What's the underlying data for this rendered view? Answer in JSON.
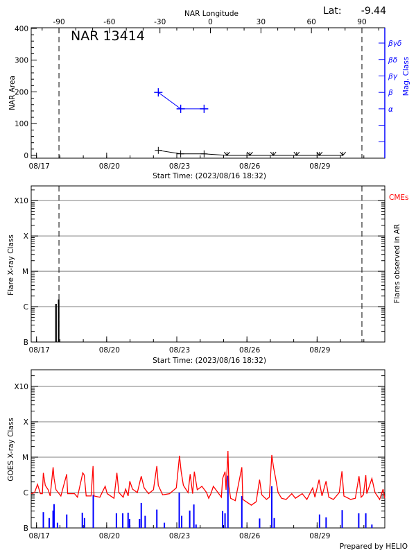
{
  "chart_data": [
    {
      "type": "line",
      "title": "NAR 13414",
      "lat_label": "Lat:",
      "lat_value": "-9.44",
      "xlabel": "Start Time: (2023/08/16 18:32)",
      "xlim": [
        "08/16 18:32",
        "08/31 21:30"
      ],
      "x_ticks": [
        "08/17",
        "08/20",
        "08/23",
        "08/26",
        "08/29"
      ],
      "top_axis": {
        "label": "NAR Longitude",
        "ticks": [
          "-90",
          "-60",
          "-30",
          "0",
          "30",
          "60",
          "90"
        ],
        "range": [
          -106.5,
          103.6
        ]
      },
      "limb_longitudes": [
        -90,
        90
      ],
      "ylabel": "NAR Area",
      "ylim": [
        -8.7,
        402
      ],
      "y_ticks": [
        "0",
        "100",
        "200",
        "300",
        "400"
      ],
      "y2label": "Mag. Class",
      "y2lim": [
        0,
        7.93
      ],
      "y2_ticks": [
        "",
        "",
        "α",
        "β",
        "βγ",
        "βδ",
        "βγδ"
      ],
      "colors": {
        "area": "#000000",
        "mag": "#0000ff"
      },
      "area_series": {
        "x": [
          "08/22 05:00",
          "08/23 04:00",
          "08/24 04:00",
          "08/25 03:30",
          "08/26 03:00",
          "08/27 03:00",
          "08/28 03:00",
          "08/29 02:30",
          "08/30 02:30"
        ],
        "y": [
          16,
          5,
          5,
          0,
          0,
          0,
          0,
          0,
          0
        ]
      },
      "mag_series": {
        "x": [
          "08/22 05:00",
          "08/23 04:00",
          "08/24 04:00"
        ],
        "class": [
          "β",
          "α",
          "α"
        ]
      }
    },
    {
      "type": "bar",
      "xlabel": "Start Time: (2023/08/16 18:32)",
      "xlim": [
        "08/16 18:32",
        "08/31 21:30"
      ],
      "x_ticks": [
        "08/17",
        "08/20",
        "08/23",
        "08/26",
        "08/29"
      ],
      "ylabel": "Flare X-ray Class",
      "y2label": "Flares observed in AR",
      "legend": {
        "label": "CMEs",
        "color": "#ff0000",
        "placement": "top-right"
      },
      "yscale": "log",
      "ylim": [
        1e-07,
        0.0026
      ],
      "y_ticks": [
        {
          "label": "B",
          "value": 1e-07
        },
        {
          "label": "C",
          "value": 1e-06
        },
        {
          "label": "M",
          "value": 1e-05
        },
        {
          "label": "X",
          "value": 0.0001
        },
        {
          "label": "X10",
          "value": 0.001
        }
      ],
      "grid": true,
      "limb_longitudes": [
        -90,
        90
      ],
      "flares": {
        "x": [
          "08/17 20:00",
          "08/17 22:45"
        ],
        "flux": [
          1.2e-06,
          1.6e-06
        ],
        "color": "#000000"
      }
    },
    {
      "type": "line",
      "xlim": [
        "08/16 18:32",
        "08/31 21:30"
      ],
      "x_ticks": [
        "08/17",
        "08/20",
        "08/23",
        "08/26",
        "08/29"
      ],
      "ylabel": "GOES X-ray Class",
      "yscale": "log",
      "ylim": [
        1e-07,
        0.00295
      ],
      "y_ticks": [
        {
          "label": "B",
          "value": 1e-07
        },
        {
          "label": "C",
          "value": 1e-06
        },
        {
          "label": "M",
          "value": 1e-05
        },
        {
          "label": "X",
          "value": 0.0001
        },
        {
          "label": "X10",
          "value": 0.001
        }
      ],
      "grid": true,
      "footer": "Prepared by HELIO",
      "series": [
        {
          "color": "#ff0000",
          "x": [
            "08/16 18:32",
            "08/16 22:00",
            "08/17 01:00",
            "08/17 04:00",
            "08/17 06:00",
            "08/17 07:00",
            "08/17 09:00",
            "08/17 12:00",
            "08/17 14:00",
            "08/17 17:00",
            "08/17 18:00",
            "08/17 20:00",
            "08/18 01:00",
            "08/18 07:00",
            "08/18 08:00",
            "08/18 15:00",
            "08/18 18:00",
            "08/18 23:30",
            "08/19 01:00",
            "08/19 03:00",
            "08/19 08:00",
            "08/19 10:00",
            "08/19 11:00",
            "08/19 17:00",
            "08/19 22:30",
            "08/20 00:30",
            "08/20 07:30",
            "08/20 10:30",
            "08/20 12:30",
            "08/20 17:00",
            "08/20 19:30",
            "08/20 22:00",
            "08/20 23:45",
            "08/21 02:30",
            "08/21 07:30",
            "08/21 11:30",
            "08/21 14:30",
            "08/21 19:00",
            "08/22 00:00",
            "08/22 03:30",
            "08/22 05:00",
            "08/22 09:30",
            "08/22 16:30",
            "08/22 23:30",
            "08/23 02:45",
            "08/23 04:30",
            "08/23 06:45",
            "08/23 11:30",
            "08/23 13:45",
            "08/23 16:15",
            "08/23 18:00",
            "08/23 21:00",
            "08/24 01:45",
            "08/24 06:30",
            "08/24 08:45",
            "08/24 11:00",
            "08/24 13:30",
            "08/24 18:15",
            "08/24 21:45",
            "08/24 23:00",
            "08/25 01:30",
            "08/25 02:30",
            "08/25 04:30",
            "08/25 05:30",
            "08/25 07:15",
            "08/25 12:00",
            "08/25 18:45",
            "08/25 19:45",
            "08/26 04:30",
            "08/26 09:30",
            "08/26 13:00",
            "08/26 15:15",
            "08/26 20:00",
            "08/26 23:00",
            "08/27 01:30",
            "08/27 03:15",
            "08/27 05:30",
            "08/27 08:00",
            "08/27 11:30",
            "08/27 16:15",
            "08/27 22:00",
            "08/28 01:45",
            "08/28 08:45",
            "08/28 13:30",
            "08/28 19:30",
            "08/28 21:45",
            "08/29 02:00",
            "08/29 05:00",
            "08/29 09:15",
            "08/29 12:00",
            "08/29 16:45",
            "08/29 22:45",
            "08/30 01:30",
            "08/30 03:30",
            "08/30 10:30",
            "08/30 15:15",
            "08/30 19:00",
            "08/30 21:15",
            "08/30 23:30",
            "08/31 02:00",
            "08/31 03:00",
            "08/31 08:15",
            "08/31 11:30",
            "08/31 16:15",
            "08/31 19:45",
            "08/31 21:30"
          ],
          "flux": [
            9.3e-07,
            1e-06,
            1.7e-06,
            9.3e-07,
            9.3e-07,
            3.6e-06,
            1.6e-06,
            1.2e-06,
            8e-07,
            5.2e-06,
            2.5e-06,
            1.2e-06,
            8e-07,
            3.3e-06,
            9.3e-07,
            9.3e-07,
            7.4e-07,
            3.6e-06,
            3.1e-06,
            8e-07,
            8e-07,
            5.6e-06,
            8e-07,
            7.4e-07,
            1.5e-06,
            9.3e-07,
            6.9e-07,
            3.6e-06,
            1e-06,
            7.4e-07,
            1.25e-06,
            8e-07,
            2.1e-06,
            1.25e-06,
            1e-06,
            2.9e-06,
            1.35e-06,
            9.3e-07,
            1.2e-06,
            5.6e-06,
            1.6e-06,
            8.6e-07,
            9.3e-07,
            1.35e-06,
            1.1e-05,
            3.9e-06,
            1.6e-06,
            1e-06,
            3.3e-06,
            9.3e-07,
            3.9e-06,
            1.2e-06,
            1.5e-06,
            1e-06,
            6.9e-07,
            9.3e-07,
            1.5e-06,
            1e-06,
            7.4e-07,
            2.5e-06,
            3.9e-06,
            1.2e-06,
            1.5e-05,
            1.5e-06,
            6.9e-07,
            5.9e-07,
            5.2e-06,
            6.4e-07,
            4.4e-07,
            5.5e-07,
            2.3e-06,
            8.6e-07,
            6.4e-07,
            7.4e-07,
            1.15e-05,
            5.2e-06,
            2.5e-06,
            1e-06,
            6.9e-07,
            6.4e-07,
            9.3e-07,
            6.9e-07,
            9.3e-07,
            6.4e-07,
            1.35e-06,
            7.4e-07,
            2.3e-06,
            8e-07,
            2.1e-06,
            7.4e-07,
            6.4e-07,
            1e-06,
            4e-06,
            8e-07,
            6.4e-07,
            6.9e-07,
            2.9e-06,
            7.4e-07,
            8.6e-07,
            3.1e-06,
            9.3e-07,
            2.5e-06,
            1e-06,
            6.4e-07,
            1.25e-06,
            6.9e-07
          ]
        },
        {
          "color": "#0000ff",
          "style": "bars",
          "x": [
            "08/17 07:00",
            "08/17 13:00",
            "08/17 17:00",
            "08/17 18:00",
            "08/17 21:30",
            "08/18 07:00",
            "08/18 23:00",
            "08/19 01:15",
            "08/19 10:15",
            "08/20 10:00",
            "08/20 16:30",
            "08/20 22:00",
            "08/20 23:30",
            "08/21 09:45",
            "08/21 11:30",
            "08/21 15:30",
            "08/22 03:30",
            "08/22 11:15",
            "08/23 02:30",
            "08/23 05:00",
            "08/23 13:15",
            "08/23 17:30",
            "08/23 19:45",
            "08/24 23:00",
            "08/25 01:30",
            "08/25 04:30",
            "08/25 18:45",
            "08/26 13:00",
            "08/27 01:30",
            "08/27 04:00",
            "08/29 02:30",
            "08/29 09:15",
            "08/30 01:45",
            "08/30 18:45",
            "08/31 02:00",
            "08/31 08:15"
          ],
          "flux": [
            2.8e-07,
            1.9e-07,
            3.1e-07,
            4.7e-07,
            1.4e-07,
            2.4e-07,
            2.7e-07,
            1.9e-07,
            8.6e-07,
            2.6e-07,
            2.6e-07,
            2.7e-07,
            1.8e-07,
            1.8e-07,
            5.1e-07,
            2.2e-07,
            3.3e-07,
            1.4e-07,
            1e-06,
            2.2e-07,
            3.1e-07,
            4.6e-07,
            1.25e-07,
            3e-07,
            2.6e-07,
            3e-06,
            8e-07,
            1.85e-07,
            1.5e-06,
            1.9e-07,
            2.4e-07,
            2e-07,
            3.2e-07,
            2.6e-07,
            2.6e-07,
            1.25e-07
          ]
        }
      ]
    }
  ]
}
